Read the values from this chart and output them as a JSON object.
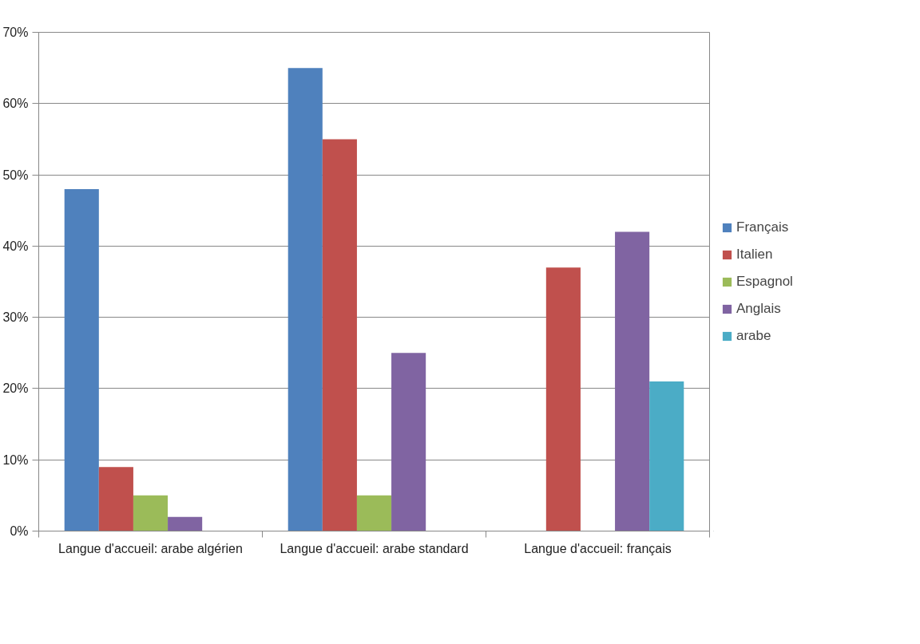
{
  "chart_data": {
    "type": "bar",
    "categories": [
      "Langue d'accueil: arabe algérien",
      "Langue d'accueil: arabe standard",
      "Langue d'accueil: français"
    ],
    "series": [
      {
        "name": "Français",
        "color": "#4f81bd",
        "values": [
          48,
          65,
          null
        ]
      },
      {
        "name": "Italien",
        "color": "#c0504d",
        "values": [
          9,
          55,
          37
        ]
      },
      {
        "name": "Espagnol",
        "color": "#9bbb59",
        "values": [
          5,
          5,
          null
        ]
      },
      {
        "name": "Anglais",
        "color": "#8064a2",
        "values": [
          2,
          25,
          42
        ]
      },
      {
        "name": "arabe",
        "color": "#4bacc6",
        "values": [
          null,
          null,
          21
        ]
      }
    ],
    "ylim": [
      0,
      70
    ],
    "yticks": [
      {
        "value": 0,
        "label": "0%"
      },
      {
        "value": 10,
        "label": "10%"
      },
      {
        "value": 20,
        "label": "20%"
      },
      {
        "value": 30,
        "label": "30%"
      },
      {
        "value": 40,
        "label": "40%"
      },
      {
        "value": 50,
        "label": "50%"
      },
      {
        "value": 60,
        "label": "60%"
      },
      {
        "value": 70,
        "label": "70%"
      }
    ],
    "grid": "y",
    "legend": "right"
  }
}
